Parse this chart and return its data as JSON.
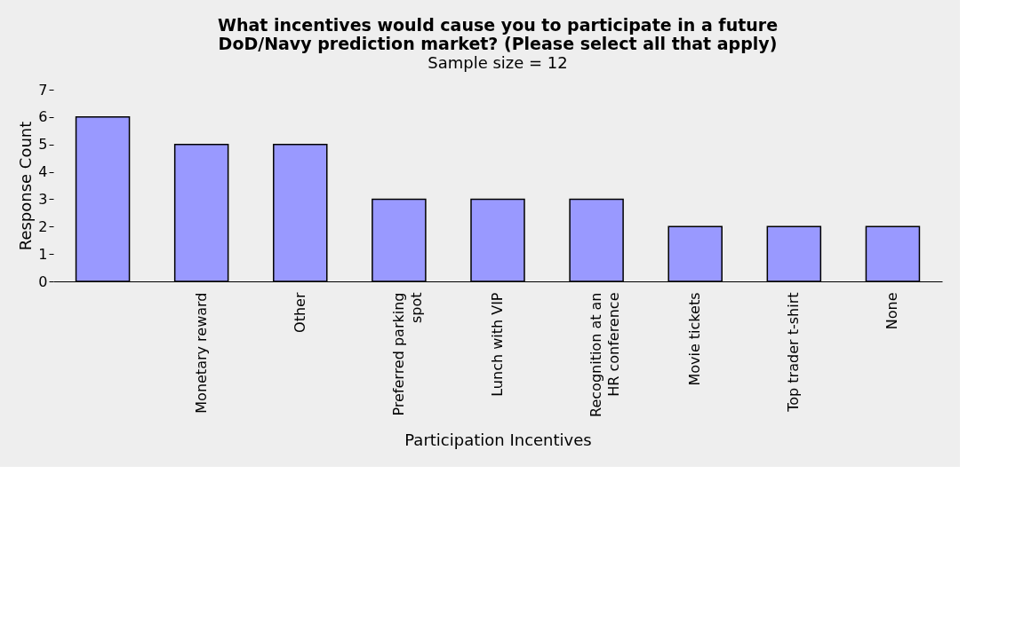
{
  "chart_data": {
    "type": "bar",
    "title": "What incentives would cause you to participate in a future\nDoD/Navy prediction market? (Please select all that apply)",
    "subtitle": "Sample size = 12",
    "xlabel": "Participation Incentives",
    "ylabel": "Response Count",
    "categories": [
      null,
      "Monetary reward",
      "Other",
      "Preferred parking spot",
      "Lunch with VIP",
      "Recognition at an HR conference",
      "Movie tickets",
      "Top trader t-shirt",
      "None"
    ],
    "values": [
      6,
      5,
      5,
      3,
      3,
      3,
      2,
      2,
      2
    ],
    "color": "#9999ff",
    "ylim": [
      0,
      7
    ],
    "yticks": [
      0,
      1,
      2,
      3,
      4,
      5,
      6,
      7
    ],
    "grid": false
  }
}
